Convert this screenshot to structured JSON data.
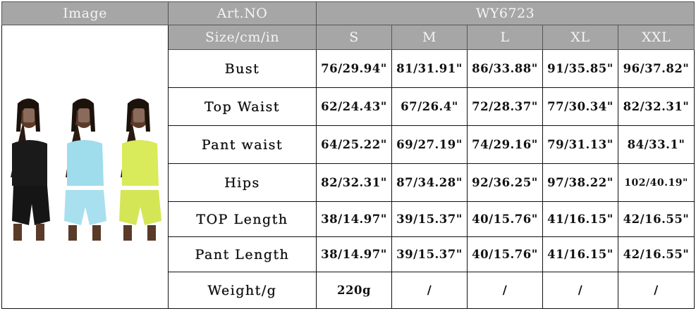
{
  "header": {
    "image_label": "Image",
    "art_no_label": "Art.NO",
    "art_no_value": "WY6723",
    "size_label": "Size/cm/in",
    "sizes": [
      "S",
      "M",
      "L",
      "XL",
      "XXL"
    ]
  },
  "product_image": {
    "description_colors": [
      "#1a1a1a",
      "#9fdcec",
      "#d9ea5a"
    ]
  },
  "rows": [
    {
      "label": "Bust",
      "values": [
        "76/29.94\"",
        "81/31.91\"",
        "86/33.88\"",
        "91/35.85\"",
        "96/37.82\""
      ]
    },
    {
      "label": "Top Waist",
      "values": [
        "62/24.43\"",
        "67/26.4\"",
        "72/28.37\"",
        "77/30.34\"",
        "82/32.31\""
      ]
    },
    {
      "label": "Pant waist",
      "values": [
        "64/25.22\"",
        "69/27.19\"",
        "74/29.16\"",
        "79/31.13\"",
        "84/33.1\""
      ]
    },
    {
      "label": "Hips",
      "values": [
        "82/32.31\"",
        "87/34.28\"",
        "92/36.25\"",
        "97/38.22\"",
        "102/40.19\""
      ]
    },
    {
      "label": "TOP Length",
      "values": [
        "38/14.97\"",
        "39/15.37\"",
        "40/15.76\"",
        "41/16.15\"",
        "42/16.55\""
      ]
    },
    {
      "label": "Pant Length",
      "values": [
        "38/14.97\"",
        "39/15.37\"",
        "40/15.76\"",
        "41/16.15\"",
        "42/16.55\""
      ]
    },
    {
      "label": "Weight/g",
      "values": [
        "220g",
        "/",
        "/",
        "/",
        "/"
      ]
    }
  ]
}
